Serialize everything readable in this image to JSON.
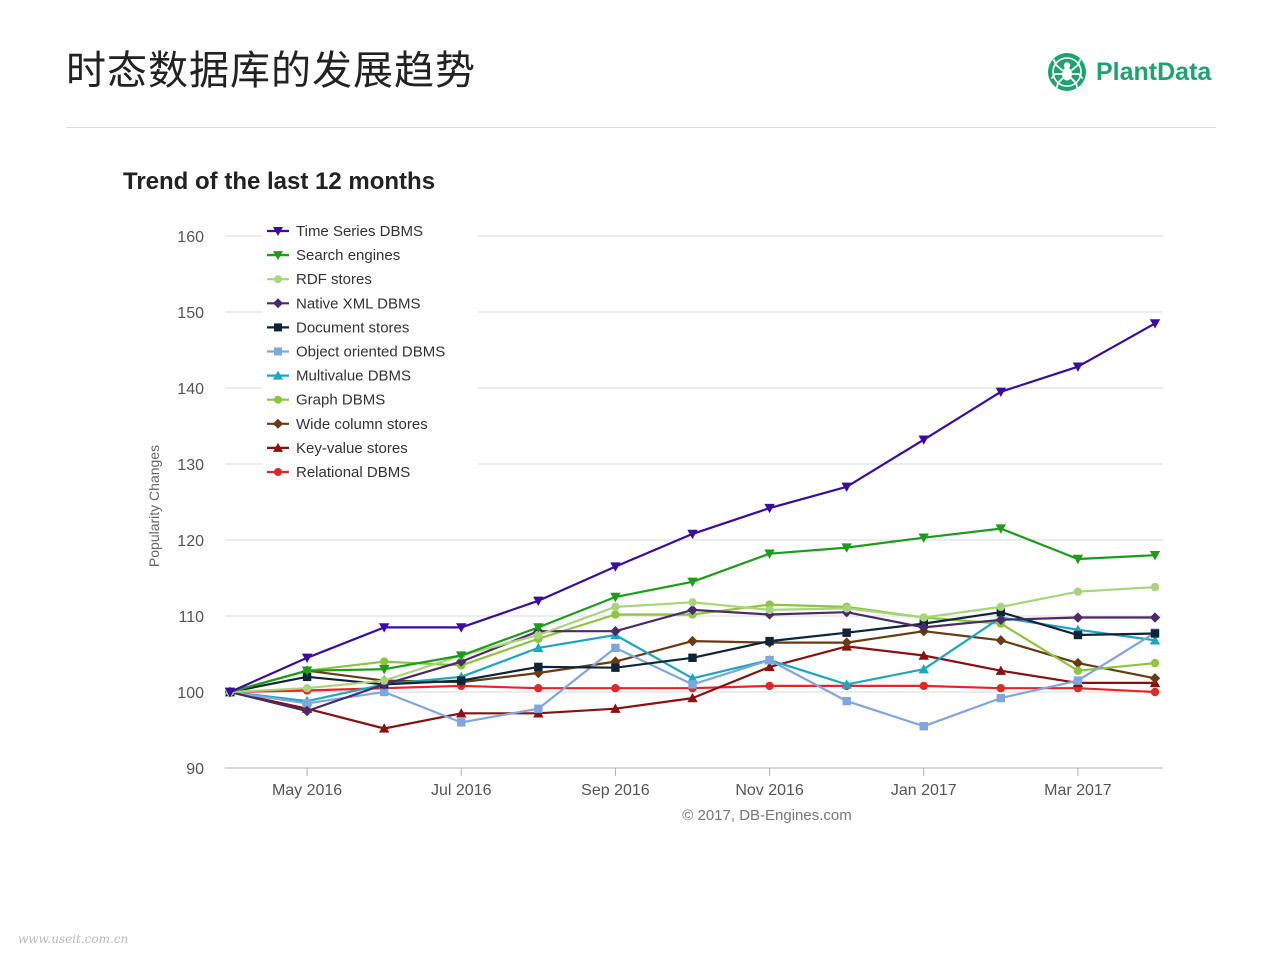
{
  "slide": {
    "title": "时态数据库的发展趋势",
    "logo_text": "PlantData",
    "watermark": "www.useit.com.cn"
  },
  "colors": {
    "brand": "#1ea36e",
    "grid": "#d8d8d8",
    "axis_text": "#555555"
  },
  "chart_data": {
    "type": "line",
    "title": "Trend of the last 12 months",
    "ylabel": "Popularity Changes",
    "xlabel": "",
    "credits": "© 2017, DB-Engines.com",
    "ylim": [
      90,
      160
    ],
    "yticks": [
      90,
      100,
      110,
      120,
      130,
      140,
      150,
      160
    ],
    "x": [
      "Apr 2016",
      "May 2016",
      "Jun 2016",
      "Jul 2016",
      "Aug 2016",
      "Sep 2016",
      "Oct 2016",
      "Nov 2016",
      "Dec 2016",
      "Jan 2017",
      "Feb 2017",
      "Mar 2017",
      "Apr 2017"
    ],
    "xtick_labels": [
      "May 2016",
      "Jul 2016",
      "Sep 2016",
      "Nov 2016",
      "Jan 2017",
      "Mar 2017"
    ],
    "grid": true,
    "legend_position": "top-left",
    "series": [
      {
        "name": "Time Series DBMS",
        "color": "#3a0ca3",
        "marker": "triangle-down",
        "values": [
          100,
          104.5,
          108.5,
          108.5,
          112,
          116.5,
          120.8,
          124.2,
          127,
          133.2,
          139.5,
          142.8,
          148.5
        ]
      },
      {
        "name": "Search engines",
        "color": "#1a9e1a",
        "marker": "triangle-down",
        "values": [
          100,
          102.8,
          103,
          104.8,
          108.5,
          112.5,
          114.5,
          118.2,
          119,
          120.3,
          121.5,
          117.5,
          118
        ]
      },
      {
        "name": "RDF stores",
        "color": "#a8d47a",
        "marker": "circle",
        "values": [
          100,
          100.5,
          101.5,
          104.8,
          107.5,
          111.2,
          111.8,
          110.8,
          111,
          109.8,
          111.2,
          113.2,
          113.8
        ]
      },
      {
        "name": "Native XML DBMS",
        "color": "#4b2a6b",
        "marker": "diamond",
        "values": [
          100,
          97.5,
          101,
          104,
          108,
          108,
          110.8,
          110.2,
          110.5,
          108.5,
          109.5,
          109.8,
          109.8
        ]
      },
      {
        "name": "Document stores",
        "color": "#0f2438",
        "marker": "square",
        "values": [
          100,
          102,
          101,
          101.5,
          103.3,
          103.2,
          104.5,
          106.7,
          107.8,
          109,
          110.5,
          107.5,
          107.7
        ]
      },
      {
        "name": "Object oriented DBMS",
        "color": "#7fa6e0",
        "marker": "square",
        "values": [
          100,
          98.5,
          100,
          96,
          97.8,
          105.8,
          101,
          104.2,
          98.8,
          95.5,
          99.2,
          101.5,
          107.8
        ]
      },
      {
        "name": "Multivalue DBMS",
        "color": "#1aa8c0",
        "marker": "triangle-up",
        "values": [
          100,
          98.8,
          101,
          102,
          105.8,
          107.5,
          101.8,
          104.2,
          101,
          103,
          109.8,
          108.2,
          106.8
        ]
      },
      {
        "name": "Graph DBMS",
        "color": "#8cc63f",
        "marker": "circle",
        "values": [
          100,
          102.8,
          104,
          103.5,
          107,
          110.2,
          110.2,
          111.5,
          111.2,
          109.8,
          109,
          102.8,
          103.8
        ]
      },
      {
        "name": "Wide column stores",
        "color": "#6b3a10",
        "marker": "diamond",
        "values": [
          100,
          102.8,
          101.5,
          101.3,
          102.5,
          104,
          106.7,
          106.5,
          106.5,
          108,
          106.8,
          103.8,
          101.8
        ]
      },
      {
        "name": "Key-value stores",
        "color": "#8b1010",
        "marker": "triangle-up",
        "values": [
          100,
          97.8,
          95.2,
          97.2,
          97.2,
          97.8,
          99.2,
          103.3,
          106,
          104.8,
          102.8,
          101.2,
          101.2
        ]
      },
      {
        "name": "Relational DBMS",
        "color": "#e02828",
        "marker": "circle",
        "values": [
          100,
          100.2,
          100.5,
          100.8,
          100.5,
          100.5,
          100.5,
          100.8,
          100.8,
          100.8,
          100.5,
          100.5,
          100
        ]
      }
    ]
  }
}
